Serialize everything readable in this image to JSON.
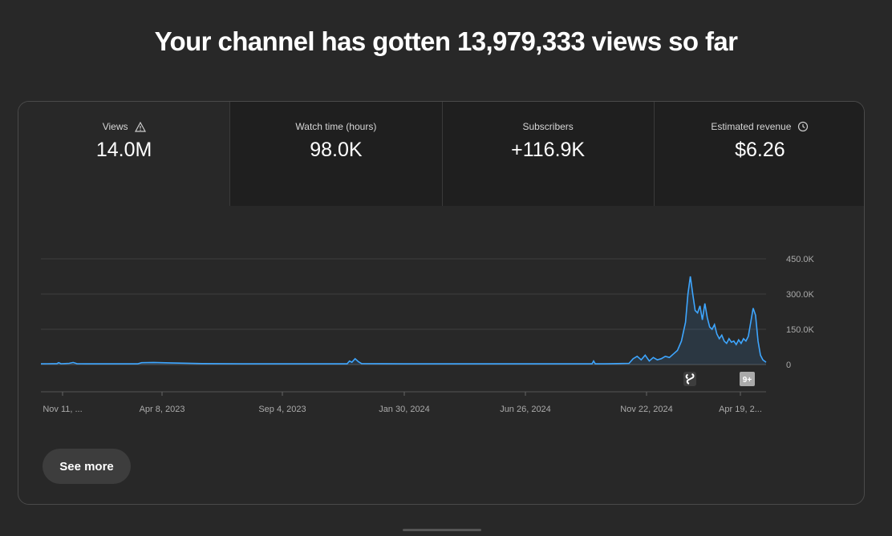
{
  "headline": "Your channel has gotten 13,979,333 views so far",
  "tabs": [
    {
      "label": "Views",
      "value": "14.0M",
      "icon": "warning-icon",
      "active": true
    },
    {
      "label": "Watch time (hours)",
      "value": "98.0K",
      "icon": "",
      "active": false
    },
    {
      "label": "Subscribers",
      "value": "+116.9K",
      "icon": "",
      "active": false
    },
    {
      "label": "Estimated revenue",
      "value": "$6.26",
      "icon": "clock-icon",
      "active": false
    }
  ],
  "see_more_label": "See more",
  "colors": {
    "line": "#3ea6ff",
    "background": "#282828",
    "grid": "#3e3e3e"
  },
  "chart_data": {
    "type": "line",
    "series": [
      {
        "values": [
          [
            0,
            3000
          ],
          [
            8,
            3500
          ],
          [
            20,
            4000
          ],
          [
            22,
            8000
          ],
          [
            25,
            3500
          ],
          [
            35,
            5000
          ],
          [
            40,
            9000
          ],
          [
            45,
            3500
          ],
          [
            55,
            3000
          ],
          [
            80,
            3000
          ],
          [
            120,
            3000
          ],
          [
            125,
            8000
          ],
          [
            140,
            9000
          ],
          [
            160,
            7000
          ],
          [
            200,
            4000
          ],
          [
            250,
            3000
          ],
          [
            300,
            3000
          ],
          [
            350,
            3000
          ],
          [
            380,
            3000
          ],
          [
            383,
            15000
          ],
          [
            386,
            10000
          ],
          [
            390,
            25000
          ],
          [
            394,
            12000
          ],
          [
            398,
            4000
          ],
          [
            450,
            3000
          ],
          [
            500,
            3000
          ],
          [
            550,
            3000
          ],
          [
            600,
            3000
          ],
          [
            650,
            3000
          ],
          [
            684,
            3000
          ],
          [
            686,
            15000
          ],
          [
            688,
            3000
          ],
          [
            700,
            3000
          ],
          [
            730,
            5000
          ],
          [
            735,
            25000
          ],
          [
            740,
            35000
          ],
          [
            745,
            20000
          ],
          [
            750,
            40000
          ],
          [
            755,
            15000
          ],
          [
            760,
            30000
          ],
          [
            765,
            20000
          ],
          [
            770,
            25000
          ],
          [
            775,
            35000
          ],
          [
            780,
            30000
          ],
          [
            785,
            45000
          ],
          [
            790,
            60000
          ],
          [
            795,
            100000
          ],
          [
            800,
            180000
          ],
          [
            803,
            300000
          ],
          [
            806,
            375000
          ],
          [
            809,
            300000
          ],
          [
            812,
            230000
          ],
          [
            815,
            220000
          ],
          [
            818,
            250000
          ],
          [
            821,
            190000
          ],
          [
            824,
            260000
          ],
          [
            827,
            200000
          ],
          [
            830,
            160000
          ],
          [
            833,
            150000
          ],
          [
            836,
            170000
          ],
          [
            839,
            130000
          ],
          [
            842,
            110000
          ],
          [
            845,
            125000
          ],
          [
            848,
            100000
          ],
          [
            851,
            90000
          ],
          [
            854,
            110000
          ],
          [
            857,
            95000
          ],
          [
            860,
            100000
          ],
          [
            863,
            85000
          ],
          [
            866,
            105000
          ],
          [
            869,
            90000
          ],
          [
            872,
            110000
          ],
          [
            875,
            100000
          ],
          [
            878,
            120000
          ],
          [
            881,
            180000
          ],
          [
            884,
            240000
          ],
          [
            887,
            210000
          ],
          [
            890,
            100000
          ],
          [
            893,
            40000
          ],
          [
            896,
            20000
          ],
          [
            900,
            10000
          ]
        ]
      }
    ],
    "x_ticks": [
      "Nov 11, ...",
      "Apr 8, 2023",
      "Sep 4, 2023",
      "Jan 30, 2024",
      "Jun 26, 2024",
      "Nov 22, 2024",
      "Apr 19, 2..."
    ],
    "y_ticks": [
      "450.0K",
      "300.0K",
      "150.0K",
      "0"
    ],
    "ylim": [
      0,
      450000
    ],
    "grid": true,
    "markers": [
      "shorts-icon",
      "new-badge-icon"
    ]
  }
}
